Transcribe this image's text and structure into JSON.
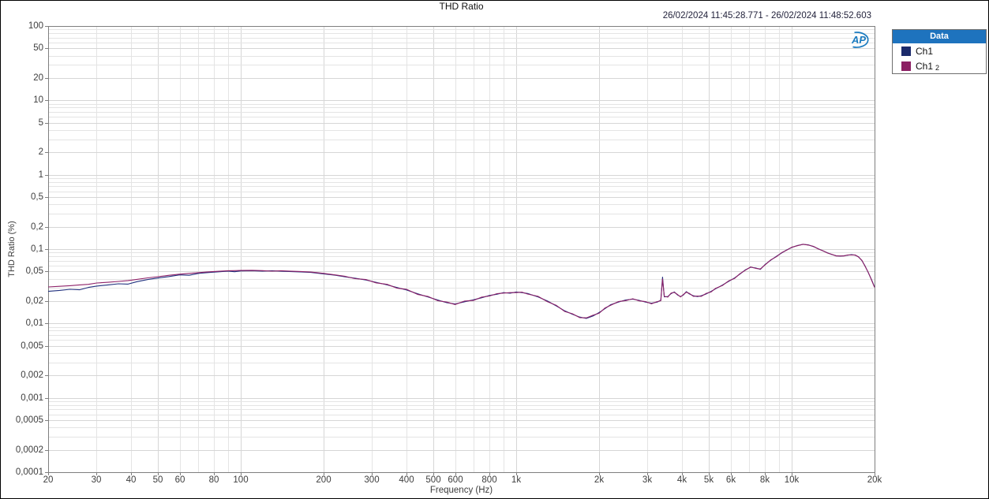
{
  "header": {
    "title": "THD Ratio",
    "timestamp": "26/02/2024 11:45:28.771 - 26/02/2024 11:48:52.603"
  },
  "logo": {
    "name": "Audio Precision",
    "text": "AP"
  },
  "legend": {
    "header": "Data",
    "items": [
      {
        "label": "Ch1",
        "sub": "",
        "color": "#1b2a6b"
      },
      {
        "label": "Ch1",
        "sub": "2",
        "color": "#8c1f63"
      }
    ]
  },
  "axes": {
    "x": {
      "label": "Frequency (Hz)",
      "scale": "log",
      "min": 20,
      "max": 20000,
      "tick_values": [
        20,
        30,
        40,
        50,
        60,
        80,
        100,
        200,
        300,
        400,
        500,
        600,
        800,
        1000,
        2000,
        3000,
        4000,
        5000,
        6000,
        8000,
        10000,
        20000
      ],
      "tick_labels": [
        "20",
        "30",
        "40",
        "50",
        "60",
        "80",
        "100",
        "200",
        "300",
        "400",
        "500",
        "600",
        "800",
        "1k",
        "2k",
        "3k",
        "4k",
        "5k",
        "6k",
        "8k",
        "10k",
        "20k"
      ]
    },
    "y": {
      "label": "THD Ratio (%)",
      "scale": "log",
      "min": 0.0001,
      "max": 100,
      "tick_values": [
        100,
        50,
        20,
        10,
        5,
        2,
        1,
        0.5,
        0.2,
        0.1,
        0.05,
        0.02,
        0.01,
        0.005,
        0.002,
        0.001,
        0.0005,
        0.0002,
        0.0001
      ],
      "tick_labels": [
        "100",
        "50",
        "20",
        "10",
        "5",
        "2",
        "1",
        "0,5",
        "0,2",
        "0,1",
        "0,05",
        "0,02",
        "0,01",
        "0,005",
        "0,002",
        "0,001",
        "0,0005",
        "0,0002",
        "0,0001"
      ]
    }
  },
  "colors": {
    "grid_minor": "#e4e4e4",
    "grid_major": "#d6d6d6",
    "plot_border": "#7f7f7f",
    "tick": "#7f7f7f",
    "legend_header_bg": "#1e73be",
    "logo_blue": "#1a7abf"
  },
  "chart_data": {
    "type": "line",
    "title": "THD Ratio",
    "xlabel": "Frequency (Hz)",
    "ylabel": "THD Ratio (%)",
    "xscale": "log",
    "yscale": "log",
    "xlim": [
      20,
      20000
    ],
    "ylim": [
      0.0001,
      100
    ],
    "legend_position": "top-right-outside",
    "grid": true,
    "x": [
      20,
      22,
      24,
      26,
      28,
      30,
      33,
      36,
      39,
      42,
      46,
      50,
      55,
      60,
      65,
      70,
      75,
      80,
      85,
      90,
      95,
      100,
      110,
      120,
      130,
      140,
      150,
      165,
      180,
      200,
      220,
      240,
      260,
      285,
      310,
      340,
      370,
      400,
      440,
      480,
      520,
      560,
      600,
      650,
      700,
      750,
      800,
      850,
      900,
      950,
      1000,
      1050,
      1100,
      1200,
      1300,
      1400,
      1500,
      1600,
      1700,
      1800,
      1900,
      2000,
      2100,
      2200,
      2350,
      2500,
      2650,
      2800,
      2950,
      3100,
      3250,
      3350,
      3400,
      3450,
      3550,
      3650,
      3750,
      3850,
      3950,
      4050,
      4150,
      4250,
      4400,
      4550,
      4700,
      4900,
      5100,
      5300,
      5600,
      5900,
      6200,
      6500,
      6800,
      7100,
      7400,
      7700,
      8000,
      8400,
      8800,
      9200,
      9600,
      10000,
      10500,
      11000,
      11500,
      12000,
      12500,
      13000,
      13500,
      14000,
      14500,
      15000,
      15500,
      16000,
      16500,
      17000,
      17500,
      18000,
      18500,
      19000,
      19500,
      20000
    ],
    "series": [
      {
        "name": "Ch1",
        "color": "#20307e",
        "values": [
          0.027,
          0.0278,
          0.0288,
          0.0284,
          0.0305,
          0.0318,
          0.033,
          0.0342,
          0.0338,
          0.0365,
          0.039,
          0.0408,
          0.0428,
          0.045,
          0.0445,
          0.047,
          0.0482,
          0.049,
          0.0498,
          0.0505,
          0.0496,
          0.0508,
          0.0512,
          0.0505,
          0.0512,
          0.0504,
          0.05,
          0.0494,
          0.0486,
          0.0465,
          0.0446,
          0.0424,
          0.0406,
          0.0384,
          0.0358,
          0.033,
          0.0304,
          0.0282,
          0.025,
          0.0226,
          0.0206,
          0.019,
          0.0183,
          0.0196,
          0.0208,
          0.0222,
          0.0238,
          0.0247,
          0.026,
          0.0255,
          0.0265,
          0.026,
          0.0253,
          0.0228,
          0.02,
          0.0172,
          0.0148,
          0.0133,
          0.0122,
          0.0117,
          0.0126,
          0.014,
          0.0158,
          0.0178,
          0.0194,
          0.0207,
          0.0212,
          0.0204,
          0.0194,
          0.0187,
          0.0194,
          0.0205,
          0.042,
          0.0228,
          0.023,
          0.0252,
          0.0266,
          0.0242,
          0.023,
          0.0242,
          0.0268,
          0.025,
          0.0236,
          0.023,
          0.0236,
          0.025,
          0.027,
          0.0293,
          0.0328,
          0.0368,
          0.0408,
          0.0462,
          0.0528,
          0.057,
          0.0558,
          0.0534,
          0.0618,
          0.0708,
          0.0798,
          0.0888,
          0.0975,
          0.105,
          0.1118,
          0.1158,
          0.114,
          0.1082,
          0.101,
          0.0945,
          0.0892,
          0.0846,
          0.0815,
          0.0804,
          0.0814,
          0.0828,
          0.084,
          0.0829,
          0.0788,
          0.07,
          0.0588,
          0.0478,
          0.0388,
          0.031
        ]
      },
      {
        "name": "Ch1_2",
        "color": "#8e2168",
        "values": [
          0.031,
          0.0316,
          0.0322,
          0.033,
          0.0336,
          0.035,
          0.0358,
          0.0368,
          0.0378,
          0.0392,
          0.041,
          0.0426,
          0.0445,
          0.046,
          0.0472,
          0.0482,
          0.0492,
          0.05,
          0.0506,
          0.0512,
          0.0514,
          0.0516,
          0.0518,
          0.0514,
          0.0505,
          0.0512,
          0.0506,
          0.05,
          0.0492,
          0.0472,
          0.045,
          0.043,
          0.04,
          0.039,
          0.0352,
          0.0336,
          0.0298,
          0.0288,
          0.0245,
          0.023,
          0.0202,
          0.0194,
          0.018,
          0.02,
          0.0204,
          0.0226,
          0.0234,
          0.0251,
          0.0256,
          0.026,
          0.026,
          0.0264,
          0.0249,
          0.0232,
          0.0196,
          0.0175,
          0.0145,
          0.0135,
          0.012,
          0.0119,
          0.0129,
          0.0137,
          0.0161,
          0.0175,
          0.0197,
          0.0203,
          0.0215,
          0.0201,
          0.0197,
          0.0184,
          0.0197,
          0.0202,
          0.0395,
          0.0232,
          0.0226,
          0.0256,
          0.0262,
          0.0246,
          0.0227,
          0.0246,
          0.0263,
          0.0254,
          0.0232,
          0.0234,
          0.0232,
          0.0254,
          0.0266,
          0.0297,
          0.0323,
          0.0373,
          0.0402,
          0.0468,
          0.0521,
          0.0576,
          0.0551,
          0.054,
          0.0611,
          0.0715,
          0.079,
          0.0895,
          0.0968,
          0.1058,
          0.111,
          0.1164,
          0.1132,
          0.1089,
          0.1003,
          0.0951,
          0.0885,
          0.0851,
          0.0809,
          0.0809,
          0.0808,
          0.0834,
          0.0833,
          0.0835,
          0.0782,
          0.0706,
          0.0582,
          0.0483,
          0.0383,
          0.0305
        ]
      }
    ]
  }
}
